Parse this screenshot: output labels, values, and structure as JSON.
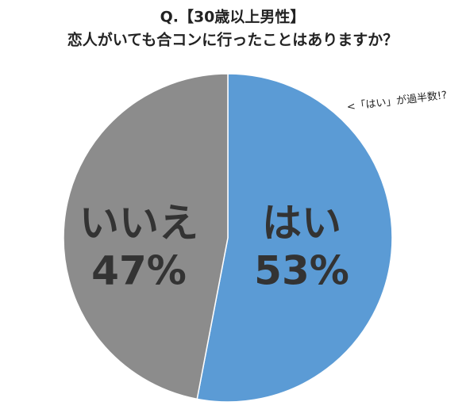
{
  "chart_data": {
    "type": "pie",
    "title": "Q.【30歳以上男性】",
    "subtitle": "恋人がいても合コンに行ったことはありますか？",
    "annotation": "<「はい」が過半数!?",
    "categories": [
      "はい",
      "いいえ"
    ],
    "values": [
      53,
      47
    ],
    "value_labels": [
      "53%",
      "47%"
    ],
    "colors": [
      "#5b9bd5",
      "#8c8c8c"
    ]
  }
}
